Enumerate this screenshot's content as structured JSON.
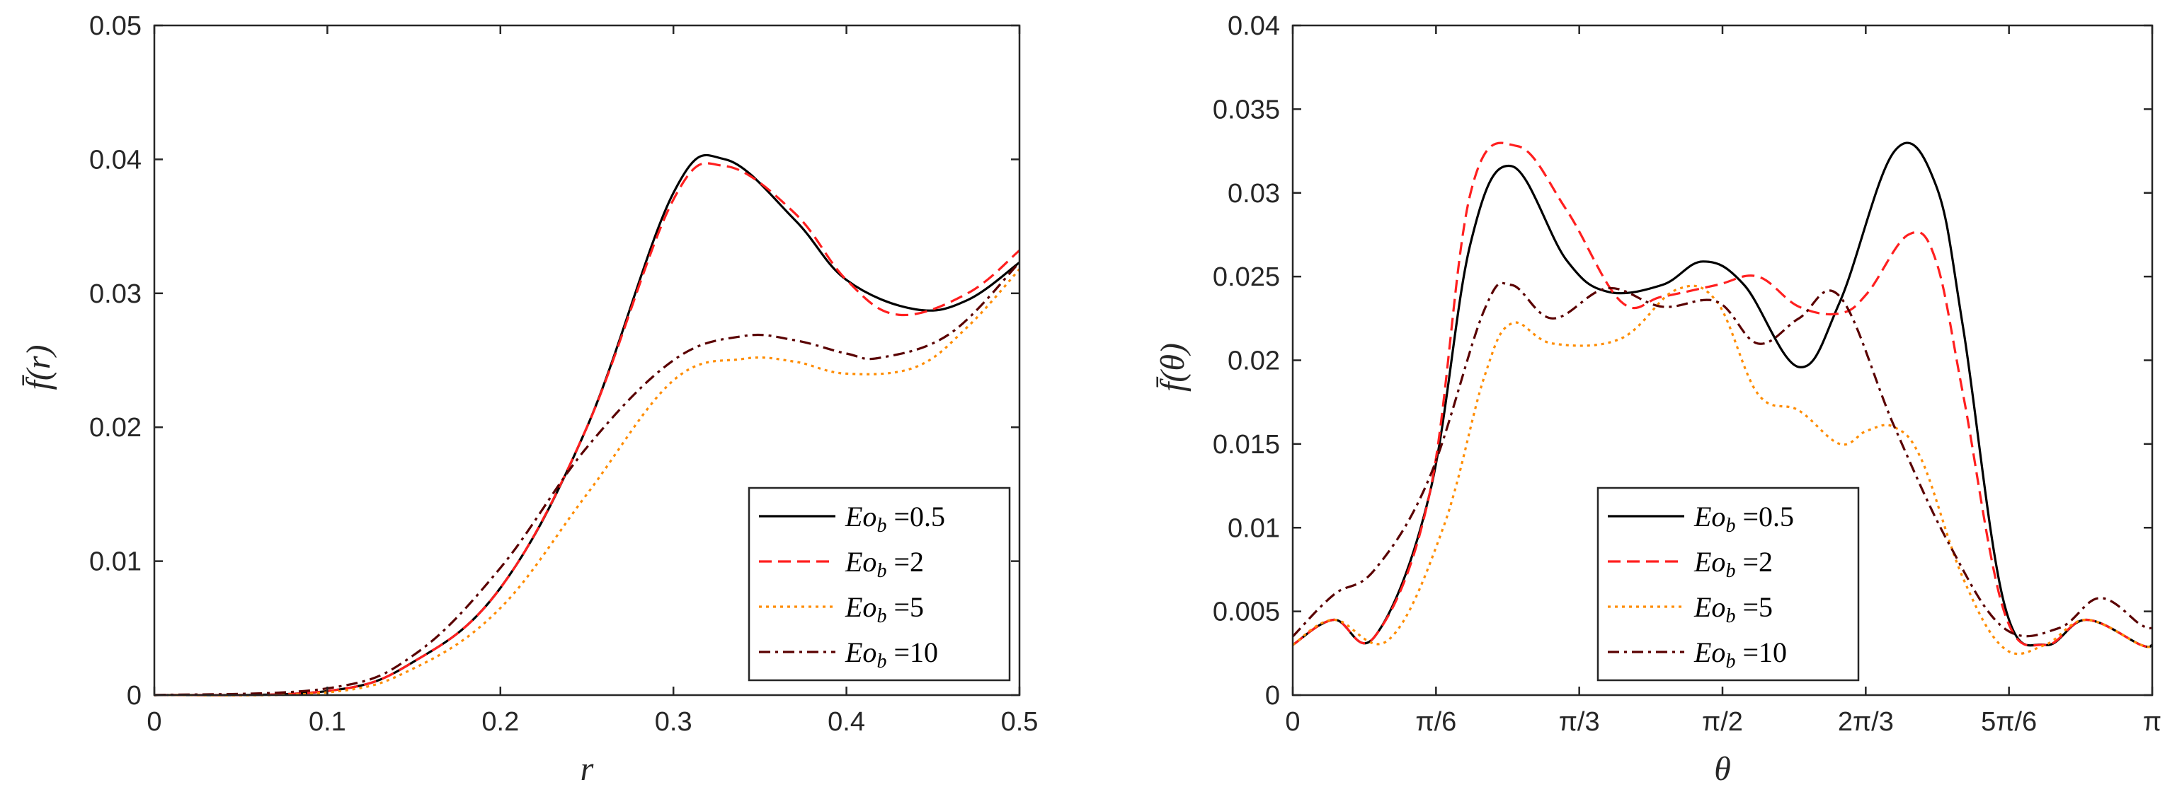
{
  "chart_data": [
    {
      "type": "line",
      "title": "",
      "xlabel": "r",
      "ylabel": "f̄(r)",
      "xlim": [
        0,
        0.5
      ],
      "ylim": [
        0,
        0.05
      ],
      "xticks": [
        0,
        0.1,
        0.2,
        0.3,
        0.4,
        0.5
      ],
      "xtick_labels": [
        "0",
        "0.1",
        "0.2",
        "0.3",
        "0.4",
        "0.5"
      ],
      "yticks": [
        0,
        0.01,
        0.02,
        0.03,
        0.04,
        0.05
      ],
      "ytick_labels": [
        "0",
        "0.01",
        "0.02",
        "0.03",
        "0.04",
        "0.05"
      ],
      "legend_position": "bottom-right",
      "series": [
        {
          "name": "Eo_b = 0.5",
          "legend_prefix": "Eo",
          "legend_sub": "b",
          "legend_value": "=0.5",
          "color": "#000000",
          "dash": "solid",
          "x": [
            0,
            0.1,
            0.15,
            0.2,
            0.25,
            0.3,
            0.33,
            0.37,
            0.4,
            0.44,
            0.47,
            0.5
          ],
          "y": [
            0,
            0.0003,
            0.0025,
            0.008,
            0.02,
            0.0375,
            0.04,
            0.0355,
            0.031,
            0.0288,
            0.0295,
            0.0323
          ]
        },
        {
          "name": "Eo_b = 2",
          "legend_prefix": "Eo",
          "legend_sub": "b",
          "legend_value": "=2",
          "color": "#ff1f1f",
          "dash": "dashed",
          "x": [
            0,
            0.1,
            0.15,
            0.2,
            0.25,
            0.3,
            0.33,
            0.37,
            0.4,
            0.43,
            0.47,
            0.5
          ],
          "y": [
            0,
            0.0003,
            0.0025,
            0.008,
            0.02,
            0.037,
            0.0395,
            0.036,
            0.031,
            0.0284,
            0.03,
            0.0332
          ]
        },
        {
          "name": "Eo_b = 5",
          "legend_prefix": "Eo",
          "legend_sub": "b",
          "legend_value": "=5",
          "color": "#ff8c00",
          "dash": "dotted",
          "x": [
            0,
            0.1,
            0.15,
            0.2,
            0.25,
            0.3,
            0.34,
            0.37,
            0.4,
            0.44,
            0.47,
            0.5
          ],
          "y": [
            0,
            0.0002,
            0.002,
            0.0065,
            0.015,
            0.0235,
            0.0251,
            0.0249,
            0.024,
            0.0245,
            0.0275,
            0.0318
          ]
        },
        {
          "name": "Eo_b = 10",
          "legend_prefix": "Eo",
          "legend_sub": "b",
          "legend_value": "=10",
          "color": "#5a0000",
          "dash": "dashdot",
          "x": [
            0,
            0.1,
            0.15,
            0.2,
            0.25,
            0.3,
            0.34,
            0.37,
            0.4,
            0.42,
            0.46,
            0.5
          ],
          "y": [
            0,
            0.0005,
            0.003,
            0.0095,
            0.0185,
            0.025,
            0.0268,
            0.0265,
            0.0255,
            0.0252,
            0.027,
            0.0323
          ]
        }
      ]
    },
    {
      "type": "line",
      "title": "",
      "xlabel": "θ",
      "ylabel": "f̄(θ)",
      "xlim": [
        0,
        3.14159
      ],
      "ylim": [
        0,
        0.04
      ],
      "xticks": [
        0,
        0.5236,
        1.0472,
        1.5708,
        2.0944,
        2.618,
        3.14159
      ],
      "xtick_labels": [
        "0",
        "π/6",
        "π/3",
        "π/2",
        "2π/3",
        "5π/6",
        "π"
      ],
      "yticks": [
        0,
        0.005,
        0.01,
        0.015,
        0.02,
        0.025,
        0.03,
        0.035,
        0.04
      ],
      "ytick_labels": [
        "0",
        "0.005",
        "0.01",
        "0.015",
        "0.02",
        "0.025",
        "0.03",
        "0.035",
        "0.04"
      ],
      "legend_position": "bottom-center",
      "series": [
        {
          "name": "Eo_b = 0.5",
          "legend_prefix": "Eo",
          "legend_sub": "b",
          "legend_value": "=0.5",
          "color": "#000000",
          "dash": "solid",
          "x": [
            0,
            0.15,
            0.3,
            0.5,
            0.65,
            0.8,
            1.0,
            1.15,
            1.35,
            1.5,
            1.65,
            1.85,
            2.0,
            2.2,
            2.35,
            2.45,
            2.6,
            2.75,
            2.9,
            3.1,
            3.14159
          ],
          "y": [
            0.003,
            0.0045,
            0.0035,
            0.012,
            0.027,
            0.0316,
            0.026,
            0.0241,
            0.0245,
            0.0259,
            0.0245,
            0.0196,
            0.0235,
            0.0325,
            0.0305,
            0.022,
            0.0055,
            0.003,
            0.0045,
            0.003,
            0.003
          ]
        },
        {
          "name": "Eo_b = 2",
          "legend_prefix": "Eo",
          "legend_sub": "b",
          "legend_value": "=2",
          "color": "#ff1f1f",
          "dash": "dashed",
          "x": [
            0,
            0.15,
            0.3,
            0.5,
            0.65,
            0.82,
            1.0,
            1.2,
            1.35,
            1.55,
            1.7,
            1.85,
            2.0,
            2.1,
            2.25,
            2.35,
            2.45,
            2.6,
            2.75,
            2.9,
            3.1,
            3.14159
          ],
          "y": [
            0.003,
            0.0045,
            0.0035,
            0.012,
            0.03,
            0.0328,
            0.029,
            0.0235,
            0.0238,
            0.0245,
            0.025,
            0.0232,
            0.0228,
            0.024,
            0.0275,
            0.026,
            0.018,
            0.005,
            0.003,
            0.0045,
            0.003,
            0.003
          ]
        },
        {
          "name": "Eo_b = 5",
          "legend_prefix": "Eo",
          "legend_sub": "b",
          "legend_value": "=5",
          "color": "#ff8c00",
          "dash": "dotted",
          "x": [
            0,
            0.15,
            0.35,
            0.55,
            0.7,
            0.8,
            0.95,
            1.2,
            1.4,
            1.55,
            1.7,
            1.85,
            2.0,
            2.1,
            2.2,
            2.3,
            2.45,
            2.6,
            2.75,
            2.9,
            3.1,
            3.14159
          ],
          "y": [
            0.003,
            0.0045,
            0.0033,
            0.01,
            0.019,
            0.0222,
            0.021,
            0.0213,
            0.0242,
            0.0235,
            0.018,
            0.017,
            0.015,
            0.0158,
            0.016,
            0.014,
            0.007,
            0.0028,
            0.003,
            0.0045,
            0.003,
            0.003
          ]
        },
        {
          "name": "Eo_b = 10",
          "legend_prefix": "Eo",
          "legend_sub": "b",
          "legend_value": "=10",
          "color": "#5a0000",
          "dash": "dashdot",
          "x": [
            0,
            0.15,
            0.3,
            0.5,
            0.7,
            0.8,
            0.95,
            1.15,
            1.35,
            1.55,
            1.7,
            1.85,
            2.0,
            2.2,
            2.4,
            2.6,
            2.8,
            2.95,
            3.1,
            3.14159
          ],
          "y": [
            0.0035,
            0.006,
            0.0075,
            0.013,
            0.023,
            0.0245,
            0.0225,
            0.0243,
            0.0232,
            0.0235,
            0.021,
            0.0225,
            0.0238,
            0.016,
            0.009,
            0.004,
            0.004,
            0.0058,
            0.0042,
            0.004
          ]
        }
      ]
    }
  ]
}
